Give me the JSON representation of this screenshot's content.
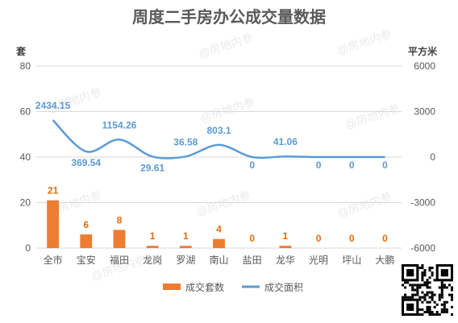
{
  "colors": {
    "bar": "#ed7d31",
    "line": "#5b9bd5",
    "grid": "#d9d9d9",
    "text": "#595959"
  },
  "watermark_text": "@房地内参",
  "chart_data": {
    "type": "bar",
    "title": "周度二手房办公成交量数据",
    "categories": [
      "全市",
      "宝安",
      "福田",
      "龙岗",
      "罗湖",
      "南山",
      "盐田",
      "龙华",
      "光明",
      "坪山",
      "大鹏"
    ],
    "series": [
      {
        "name": "成交套数",
        "type": "bar",
        "axis": "left",
        "values": [
          21,
          6,
          8,
          1,
          1,
          4,
          0,
          1,
          0,
          0,
          0
        ]
      },
      {
        "name": "成交面积",
        "type": "line",
        "axis": "right",
        "values": [
          2434.15,
          369.54,
          1154.26,
          29.61,
          36.58,
          803.1,
          0,
          41.06,
          0,
          0,
          0
        ]
      }
    ],
    "y_left": {
      "unit": "套",
      "ylim": [
        0,
        80
      ],
      "ticks": [
        0,
        20,
        40,
        60,
        80
      ]
    },
    "y_right": {
      "unit": "平方米",
      "ylim": [
        -6000,
        6000
      ],
      "ticks": [
        -6000,
        -3000,
        0,
        3000,
        6000
      ]
    },
    "grid": true,
    "legend": "bottom"
  }
}
